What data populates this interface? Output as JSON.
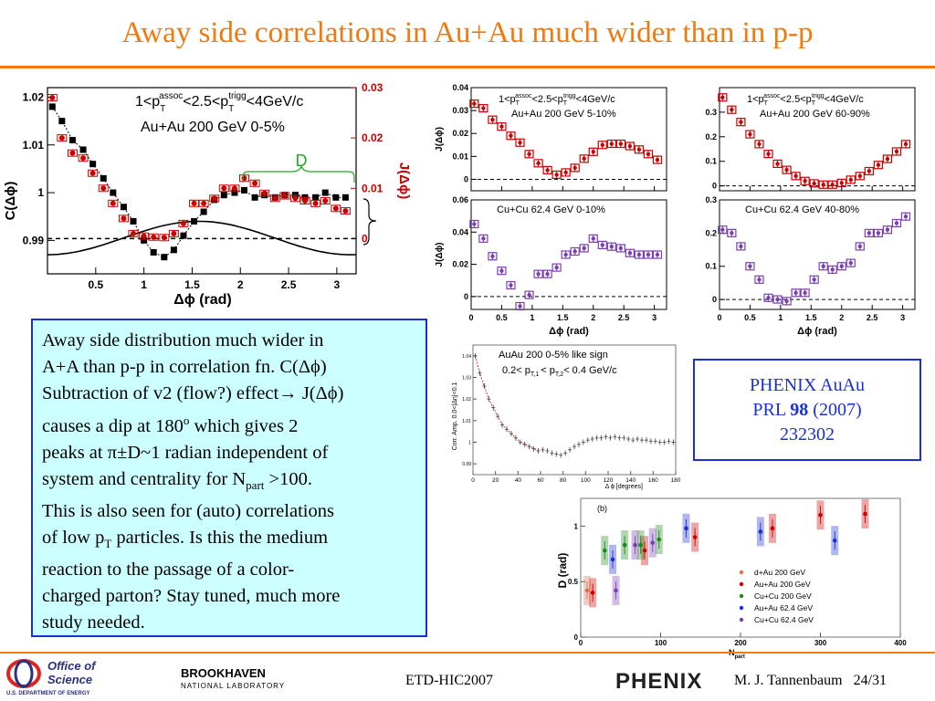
{
  "slide": {
    "title": "Away side correlations in Au+Au much wider than in p-p",
    "body_text": {
      "l1": "Away side distribution much wider in",
      "l2a": "A+A than p-p in correlation fn. C(Δϕ)",
      "l3a": "Subtraction of v2 (flow?) effect→ J(Δϕ)",
      "l4a": "causes a dip at 180",
      "l4sup": "o",
      "l4b": " which gives 2",
      "l5": "peaks at π±D~1 radian independent of",
      "l6a": "system and centrality for N",
      "l6sub": "part",
      "l6b": " >100.",
      "l7": "This is also seen for (auto) correlations",
      "l8a": "of low p",
      "l8sub": "T",
      "l8b": " particles. Is this the medium",
      "l9": "reaction to the passage of a color-",
      "l10": "charged parton? Stay tuned, much more",
      "l11": "study needed."
    },
    "reference": {
      "line1": "PHENIX AuAu",
      "line2a": "PRL ",
      "line2b": "98",
      "line2c": " (2007)",
      "line3": "232302"
    },
    "footer": {
      "conference": "ETD-HIC2007",
      "author_page": "M. J. Tannenbaum   24/31",
      "doe_logo_line1": "Office of",
      "doe_logo_line2": "Science",
      "doe_logo_line3": "U.S. DEPARTMENT OF ENERGY",
      "bnl_logo_line1": "BROOKHAVEN",
      "bnl_logo_line2": "NATIONAL LABORATORY",
      "phenix_logo": "PHENIX"
    },
    "colors": {
      "title": "#f07a10",
      "accent_red": "#cc0000",
      "purple": "#7b3fb5",
      "blue_border": "#1a2fd6",
      "textbox_bg": "#ccffff"
    }
  },
  "chart_data": [
    {
      "type": "scatter",
      "id": "main",
      "annotation1": "1<p",
      "annotation1_full": "1<pT assoc<2.5<pT trigg<4GeV/c",
      "annotation2": "Au+Au   200 GeV   0-5%",
      "xlabel": "Δϕ  (rad)",
      "ylabel_left": "C(Δϕ)",
      "ylabel_right": "J(Δϕ)",
      "d_label": "D",
      "xlim": [
        0,
        3.2
      ],
      "ylim_left": [
        0.983,
        1.022
      ],
      "ylim_right": [
        -0.007,
        0.03
      ],
      "x_ticks": [
        "0.5",
        "1",
        "1.5",
        "2",
        "2.5",
        "3"
      ],
      "y_ticks_left": [
        "0.99",
        "1",
        "1.01",
        "1.02"
      ],
      "y_ticks_right": [
        "0",
        "0.01",
        "0.02",
        "0.03"
      ],
      "x": [
        0.05,
        0.15,
        0.26,
        0.37,
        0.47,
        0.58,
        0.68,
        0.79,
        0.89,
        1.0,
        1.1,
        1.21,
        1.31,
        1.41,
        1.52,
        1.62,
        1.73,
        1.83,
        1.94,
        2.04,
        2.15,
        2.25,
        2.36,
        2.46,
        2.57,
        2.67,
        2.78,
        2.88,
        2.99,
        3.09
      ],
      "series": [
        {
          "name": "C",
          "values": [
            1.018,
            1.015,
            1.011,
            1.009,
            1.006,
            1.003,
            1.0,
            0.997,
            0.994,
            0.99,
            0.9875,
            0.9865,
            0.988,
            0.991,
            0.994,
            0.996,
            0.9985,
            0.9995,
            1.0,
            1.0005,
            0.999,
            0.9995,
            0.999,
            0.9995,
            0.9995,
            0.999,
            0.999,
            1.0,
            0.999,
            0.999
          ]
        },
        {
          "name": "J",
          "values": [
            0.028,
            0.02,
            0.017,
            0.016,
            0.013,
            0.01,
            0.007,
            0.004,
            0.001,
            0.0005,
            0.0003,
            0.0002,
            0.001,
            0.003,
            0.007,
            0.007,
            0.008,
            0.01,
            0.01,
            0.012,
            0.011,
            0.009,
            0.008,
            0.0085,
            0.008,
            0.0075,
            0.007,
            0.0075,
            0.006,
            0.0055
          ]
        }
      ]
    },
    {
      "type": "scatter",
      "id": "grid",
      "panels": [
        {
          "label1": "1<p",
          "label2": "Au+Au 200 GeV 5-10%",
          "ylim": [
            -0.005,
            0.04
          ],
          "y_ticks": [
            "0",
            "0.01",
            "0.02",
            "0.03",
            "0.04"
          ],
          "x": [
            0.05,
            0.2,
            0.35,
            0.5,
            0.65,
            0.8,
            0.95,
            1.1,
            1.25,
            1.4,
            1.55,
            1.7,
            1.85,
            2.0,
            2.15,
            2.3,
            2.45,
            2.6,
            2.75,
            2.9,
            3.05
          ],
          "values": [
            0.033,
            0.031,
            0.026,
            0.023,
            0.019,
            0.016,
            0.011,
            0.007,
            0.004,
            0.002,
            0.003,
            0.005,
            0.009,
            0.012,
            0.015,
            0.0155,
            0.0155,
            0.0145,
            0.013,
            0.011,
            0.0085
          ]
        },
        {
          "label1": "1<p",
          "label2": "Au+Au 200 GeV 60-90%",
          "ylim": [
            -0.02,
            0.4
          ],
          "y_ticks": [
            "0",
            "0.1",
            "0.2",
            "0.3"
          ],
          "x": [
            0.05,
            0.2,
            0.35,
            0.5,
            0.65,
            0.8,
            0.95,
            1.1,
            1.25,
            1.4,
            1.55,
            1.7,
            1.85,
            2.0,
            2.15,
            2.3,
            2.45,
            2.6,
            2.75,
            2.9,
            3.05
          ],
          "values": [
            0.36,
            0.31,
            0.26,
            0.21,
            0.17,
            0.13,
            0.09,
            0.065,
            0.04,
            0.02,
            0.01,
            0.005,
            0.005,
            0.012,
            0.025,
            0.04,
            0.06,
            0.085,
            0.11,
            0.14,
            0.17
          ]
        },
        {
          "label2": "Cu+Cu 62.4 GeV 0-10%",
          "ylim": [
            -0.008,
            0.06
          ],
          "y_ticks": [
            "0",
            "0.02",
            "0.04",
            "0.06"
          ],
          "x": [
            0.05,
            0.2,
            0.35,
            0.5,
            0.65,
            0.8,
            0.95,
            1.1,
            1.25,
            1.4,
            1.55,
            1.7,
            1.85,
            2.0,
            2.15,
            2.3,
            2.45,
            2.6,
            2.75,
            2.9,
            3.05
          ],
          "values": [
            0.045,
            0.036,
            0.025,
            0.016,
            0.007,
            -0.006,
            0.001,
            0.014,
            0.014,
            0.018,
            0.026,
            0.028,
            0.03,
            0.036,
            0.032,
            0.031,
            0.03,
            0.027,
            0.026,
            0.026,
            0.026
          ]
        },
        {
          "label2": "Cu+Cu 62.4 GeV 40-80%",
          "ylim": [
            -0.03,
            0.3
          ],
          "y_ticks": [
            "0",
            "0.1",
            "0.2",
            "0.3"
          ],
          "x": [
            0.05,
            0.2,
            0.35,
            0.5,
            0.65,
            0.8,
            0.95,
            1.1,
            1.25,
            1.4,
            1.55,
            1.7,
            1.85,
            2.0,
            2.15,
            2.3,
            2.45,
            2.6,
            2.75,
            2.9,
            3.05
          ],
          "values": [
            0.21,
            0.2,
            0.16,
            0.1,
            0.06,
            0.005,
            0.0,
            -0.005,
            0.02,
            0.02,
            0.06,
            0.1,
            0.09,
            0.1,
            0.11,
            0.16,
            0.2,
            0.2,
            0.21,
            0.23,
            0.25
          ]
        }
      ],
      "xlabel": "Δϕ  (rad)",
      "ylabel": "J(Δϕ)",
      "x_ticks": [
        "0",
        "0.5",
        "1",
        "1.5",
        "2",
        "2.5",
        "3"
      ],
      "xlim": [
        0,
        3.2
      ]
    },
    {
      "type": "scatter",
      "id": "auto",
      "label1": "AuAu 200 0-5% like sign",
      "label2a": "0.2< p",
      "label2b": "< p",
      "label2c": "< 0.4 GeV/c",
      "xlabel": "Δ ϕ [degrees]",
      "ylabel": "Corr. Amp. 0.0<|Δη|<0.1",
      "y_ticks": [
        "1.04",
        "1.03",
        "1.02",
        "1.01",
        "1",
        "0.99"
      ],
      "x_ticks": [
        "0",
        "20",
        "40",
        "60",
        "80",
        "100",
        "120",
        "140",
        "160",
        "180"
      ],
      "xlim": [
        0,
        180
      ],
      "ylim": [
        0.985,
        1.045
      ],
      "x": [
        2,
        6,
        10,
        14,
        18,
        22,
        26,
        30,
        34,
        38,
        42,
        46,
        50,
        54,
        58,
        62,
        66,
        70,
        74,
        78,
        82,
        86,
        90,
        94,
        98,
        102,
        106,
        110,
        114,
        118,
        122,
        126,
        130,
        134,
        138,
        142,
        146,
        150,
        154,
        158,
        162,
        166,
        170,
        174,
        178
      ],
      "values": [
        1.04,
        1.032,
        1.026,
        1.02,
        1.016,
        1.012,
        1.008,
        1.006,
        1.004,
        1.002,
        1.0,
        0.999,
        0.998,
        0.997,
        0.996,
        0.9965,
        0.996,
        0.995,
        0.9945,
        0.994,
        0.995,
        0.9965,
        0.998,
        0.999,
        1.0,
        1.001,
        1.0015,
        1.002,
        1.002,
        1.0025,
        1.002,
        1.0025,
        1.002,
        1.002,
        1.0015,
        1.001,
        1.0015,
        1.001,
        1.001,
        1.0005,
        1.0005,
        1.0,
        1.0,
        1.0005,
        1.0
      ]
    },
    {
      "type": "scatter",
      "id": "npart",
      "panel_label": "(b)",
      "xlabel": "N",
      "xlabel_sub": "part",
      "ylabel": "D  (rad)",
      "xlim": [
        0,
        400
      ],
      "ylim": [
        0,
        1.25
      ],
      "x_ticks": [
        "0",
        "100",
        "200",
        "300",
        "400"
      ],
      "y_ticks": [
        "0",
        "0.5",
        "1"
      ],
      "legend": [
        "d+Au 200 GeV",
        "Au+Au 200 GeV",
        "Cu+Cu 200 GeV",
        "Au+Au 62.4 GeV",
        "Cu+Cu 62.4 GeV"
      ],
      "series": [
        {
          "name": "d+Au 200 GeV",
          "color": "#e07050",
          "x": [
            8
          ],
          "values": [
            0.42
          ]
        },
        {
          "name": "Au+Au 200 GeV",
          "color": "#cc0000",
          "x": [
            15,
            80,
            143,
            240,
            300,
            356
          ],
          "values": [
            0.4,
            0.78,
            0.9,
            0.98,
            1.1,
            1.11
          ]
        },
        {
          "name": "Cu+Cu 200 GeV",
          "color": "#1a8a1a",
          "x": [
            30,
            55,
            75,
            98
          ],
          "values": [
            0.78,
            0.83,
            0.83,
            0.88
          ]
        },
        {
          "name": "Au+Au 62.4 GeV",
          "color": "#1a2fd6",
          "x": [
            40,
            132,
            225,
            318
          ],
          "values": [
            0.7,
            0.98,
            0.95,
            0.87
          ]
        },
        {
          "name": "Cu+Cu 62.4 GeV",
          "color": "#7b3fb5",
          "x": [
            44,
            68,
            90
          ],
          "values": [
            0.42,
            0.83,
            0.85
          ]
        }
      ]
    }
  ]
}
